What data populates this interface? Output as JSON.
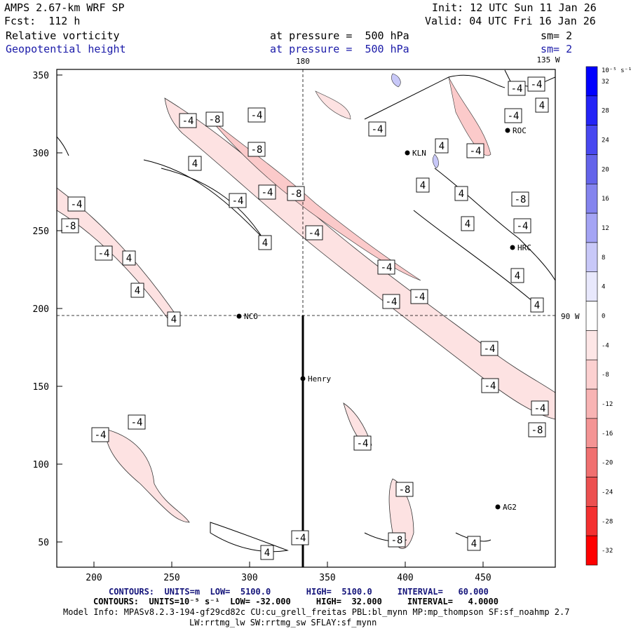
{
  "header": {
    "model": "AMPS 2.67-km WRF SP",
    "forecast": "Fcst:  112 h",
    "init": "Init: 12 UTC Sun 11 Jan 26",
    "valid": "Valid: 04 UTC Fri 16 Jan 26",
    "field1_name": "Relative vorticity",
    "field1_level": "at pressure =  500 hPa",
    "field1_sm": "sm= 2",
    "field2_name": "Geopotential height",
    "field2_level": "at pressure =  500 hPa",
    "field2_sm": "sm= 2"
  },
  "map": {
    "x_ticks": [
      "200",
      "250",
      "300",
      "350",
      "400",
      "450"
    ],
    "y_ticks": [
      "350",
      "300",
      "250",
      "200",
      "150",
      "100",
      "50"
    ],
    "meridian_labels": [
      "180",
      "135 W",
      "90 W"
    ],
    "stations": [
      "KLN",
      "ROC",
      "HRC",
      "NCO",
      "Henry",
      "AG2"
    ],
    "contour_labels": [
      "-4",
      "-8",
      "-4",
      "-8",
      "-4",
      "-4",
      "4",
      "4",
      "-8",
      "-4",
      "-4",
      "-8",
      "-4",
      "4",
      "4",
      "4",
      "-4",
      "-4",
      "-4",
      "-4",
      "-4",
      "-4",
      "-8",
      "-4",
      "-8",
      "-8",
      "-4",
      "-4",
      "-4",
      "-8",
      "-4",
      "-4",
      "-4",
      "-4",
      "4",
      "-4",
      "4",
      "4",
      "4",
      "4",
      "4",
      "4",
      "-4",
      "4",
      "4",
      "4",
      "4",
      "4",
      "4",
      "-8",
      "-4",
      "4"
    ]
  },
  "colorbar": {
    "unit_label": "10⁻⁵ s⁻¹",
    "labels": [
      "32",
      "28",
      "24",
      "20",
      "16",
      "12",
      "8",
      "4",
      "0",
      "-4",
      "-8",
      "-12",
      "-16",
      "-20",
      "-24",
      "-28",
      "-32"
    ],
    "colors": [
      "#0000ff",
      "#2424f6",
      "#4848f0",
      "#6464ea",
      "#8484ee",
      "#a4a4f4",
      "#c8c8f8",
      "#e8e8fc",
      "#ffffff",
      "#fde6e6",
      "#fcd0d0",
      "#f8b4b4",
      "#f49494",
      "#f07070",
      "#ec5050",
      "#f43030",
      "#ff0000"
    ]
  },
  "footer": {
    "contours1": "CONTOURS:  UNITS=m  LOW=  5100.0       HIGH=  5100.0     INTERVAL=   60.000",
    "contours2": "CONTOURS:  UNITS=10⁻⁵ s⁻¹  LOW= -32.000     HIGH=  32.000     INTERVAL=   4.0000",
    "model_info": "Model Info: MPASv8.2.3-194-gf29cd82c CU:cu_grell_freitas PBL:bl_mynn MP:mp_thompson SF:sf_noahmp 2.7",
    "model_info2": "LW:rrtmg_lw SW:rrtmg_sw SFLAY:sf_mynn"
  }
}
